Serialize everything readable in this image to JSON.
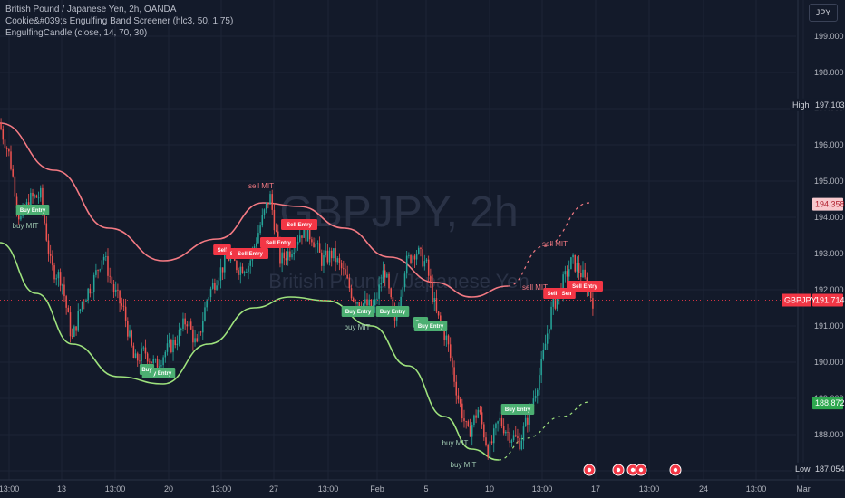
{
  "legend": {
    "line1": "British Pound / Japanese Yen, 2h, OANDA",
    "line2": "Cookie&#039;s Engulfing Band Screener (hlc3, 50, 1.75)",
    "line3": "EngulfingCandle (close, 14, 70, 30)"
  },
  "currency_button": "JPY",
  "watermark": {
    "symbol": "GBPJPY, 2h",
    "name": "British Pound / Japanese Yen"
  },
  "colors": {
    "background": "#131a2a",
    "up": "#26a69a",
    "down": "#ef5350",
    "upper_band": "#f47a83",
    "lower_band": "#9ee27d",
    "buy_tag": "#4caf72",
    "sell_tag": "#f23645",
    "price_tag": "#f23645"
  },
  "chart_data": {
    "type": "candlestick",
    "symbol": "GBPJPY",
    "timeframe": "2h",
    "ylim": [
      186.8,
      200.1
    ],
    "y_ticks": [
      "199.000",
      "198.000",
      "197.000",
      "196.000",
      "195.000",
      "194.000",
      "193.000",
      "192.000",
      "191.000",
      "190.000",
      "189.000",
      "188.000",
      "187.000"
    ],
    "x_ticks": [
      "13:00",
      "13",
      "13:00",
      "20",
      "13:00",
      "27",
      "13:00",
      "Feb",
      "5",
      "10",
      "13:00",
      "17",
      "13:00",
      "24",
      "13:00",
      "Mar"
    ],
    "close_path": [
      196.6,
      195.7,
      193.9,
      194.5,
      194.6,
      192.6,
      192.3,
      190.6,
      191.7,
      192.2,
      193.0,
      192.0,
      191.4,
      190.0,
      190.3,
      189.9,
      190.3,
      190.6,
      191.2,
      190.4,
      191.8,
      192.4,
      192.9,
      192.6,
      192.7,
      193.7,
      194.6,
      192.8,
      193.1,
      193.6,
      193.5,
      192.8,
      193.0,
      192.5,
      191.8,
      191.6,
      191.5,
      192.6,
      191.0,
      192.7,
      193.1,
      192.7,
      191.3,
      190.6,
      189.1,
      188.0,
      188.7,
      187.5,
      188.4,
      188.0,
      187.8,
      188.7,
      189.8,
      191.4,
      192.1,
      192.8,
      192.4,
      191.7
    ],
    "price_labels": {
      "high_label": "High",
      "high": "197.103",
      "upper": "194.358",
      "current_symbol": "GBPJPY",
      "current": "191.714",
      "lower": "188.872",
      "low_label": "Low",
      "low": "187.054"
    },
    "upper_band": [
      [
        0,
        196.6
      ],
      [
        60,
        195.3
      ],
      [
        120,
        193.7
      ],
      [
        180,
        192.8
      ],
      [
        240,
        193.4
      ],
      [
        290,
        194.4
      ],
      [
        330,
        194.3
      ],
      [
        380,
        193.7
      ],
      [
        430,
        192.9
      ],
      [
        480,
        192.2
      ],
      [
        520,
        191.8
      ],
      [
        560,
        192.1
      ],
      [
        600,
        193.2
      ],
      [
        650,
        194.4
      ]
    ],
    "lower_band": [
      [
        0,
        193.3
      ],
      [
        40,
        191.9
      ],
      [
        80,
        190.5
      ],
      [
        130,
        189.6
      ],
      [
        180,
        189.4
      ],
      [
        230,
        190.5
      ],
      [
        280,
        191.5
      ],
      [
        320,
        191.8
      ],
      [
        360,
        191.7
      ],
      [
        410,
        191.0
      ],
      [
        450,
        189.9
      ],
      [
        490,
        188.5
      ],
      [
        520,
        187.6
      ],
      [
        550,
        187.3
      ],
      [
        580,
        187.9
      ],
      [
        620,
        188.5
      ],
      [
        650,
        188.9
      ]
    ],
    "signals": [
      {
        "text": "Buy Entry",
        "kind": "buy",
        "x": 36,
        "price": 194.2
      },
      {
        "text": "buy MIT",
        "kind": "buy-note",
        "x": 28,
        "price": 193.7
      },
      {
        "text": "Sell",
        "kind": "sell",
        "x": 245,
        "price": 193.1
      },
      {
        "text": "Sell",
        "kind": "sell",
        "x": 259,
        "price": 193.0
      },
      {
        "text": "Sell Entry",
        "kind": "sell",
        "x": 276,
        "price": 193.0
      },
      {
        "text": "Sell Entry",
        "kind": "sell",
        "x": 307,
        "price": 193.3
      },
      {
        "text": "sell MIT",
        "kind": "sell-note",
        "x": 288,
        "price": 194.8
      },
      {
        "text": "Sell Entry",
        "kind": "sell",
        "x": 330,
        "price": 193.8
      },
      {
        "text": "Buy Entry",
        "kind": "buy",
        "x": 175,
        "price": 189.7
      },
      {
        "text": "Buy",
        "kind": "buy",
        "x": 162,
        "price": 189.8
      },
      {
        "text": "Buy Entry",
        "kind": "buy",
        "x": 395,
        "price": 191.4
      },
      {
        "text": "buy MIT",
        "kind": "buy-note",
        "x": 394,
        "price": 190.9
      },
      {
        "text": "Buy Entry",
        "kind": "buy",
        "x": 433,
        "price": 191.4
      },
      {
        "text": "Buy",
        "kind": "buy",
        "x": 464,
        "price": 191.1
      },
      {
        "text": "Buy Entry",
        "kind": "buy",
        "x": 475,
        "price": 191.0
      },
      {
        "text": "buy MIT",
        "kind": "buy-note",
        "x": 502,
        "price": 187.7
      },
      {
        "text": "buy MIT",
        "kind": "buy-note",
        "x": 511,
        "price": 187.1
      },
      {
        "text": "Buy Entry",
        "kind": "buy",
        "x": 571,
        "price": 188.7
      },
      {
        "text": "sell MIT",
        "kind": "sell-note",
        "x": 612,
        "price": 193.2
      },
      {
        "text": "sell MIT",
        "kind": "sell-note",
        "x": 590,
        "price": 192.0
      },
      {
        "text": "Sell",
        "kind": "sell",
        "x": 609,
        "price": 191.9
      },
      {
        "text": "Sell",
        "kind": "sell",
        "x": 625,
        "price": 191.9
      },
      {
        "text": "Sell Entry",
        "kind": "sell",
        "x": 645,
        "price": 192.1
      }
    ]
  }
}
